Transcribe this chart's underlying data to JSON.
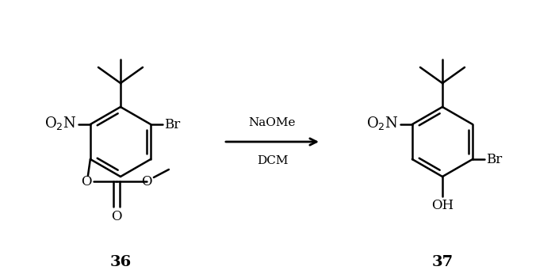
{
  "bg_color": "#ffffff",
  "line_color": "#000000",
  "line_width": 1.8,
  "font_size_no2": 13,
  "font_size_br": 12,
  "font_size_oh": 12,
  "font_size_o": 12,
  "font_size_number": 14,
  "font_size_arrow": 11,
  "arrow_label_naome": "NaOMe",
  "arrow_label_dcm": "DCM",
  "compound_36": "36",
  "compound_37": "37"
}
